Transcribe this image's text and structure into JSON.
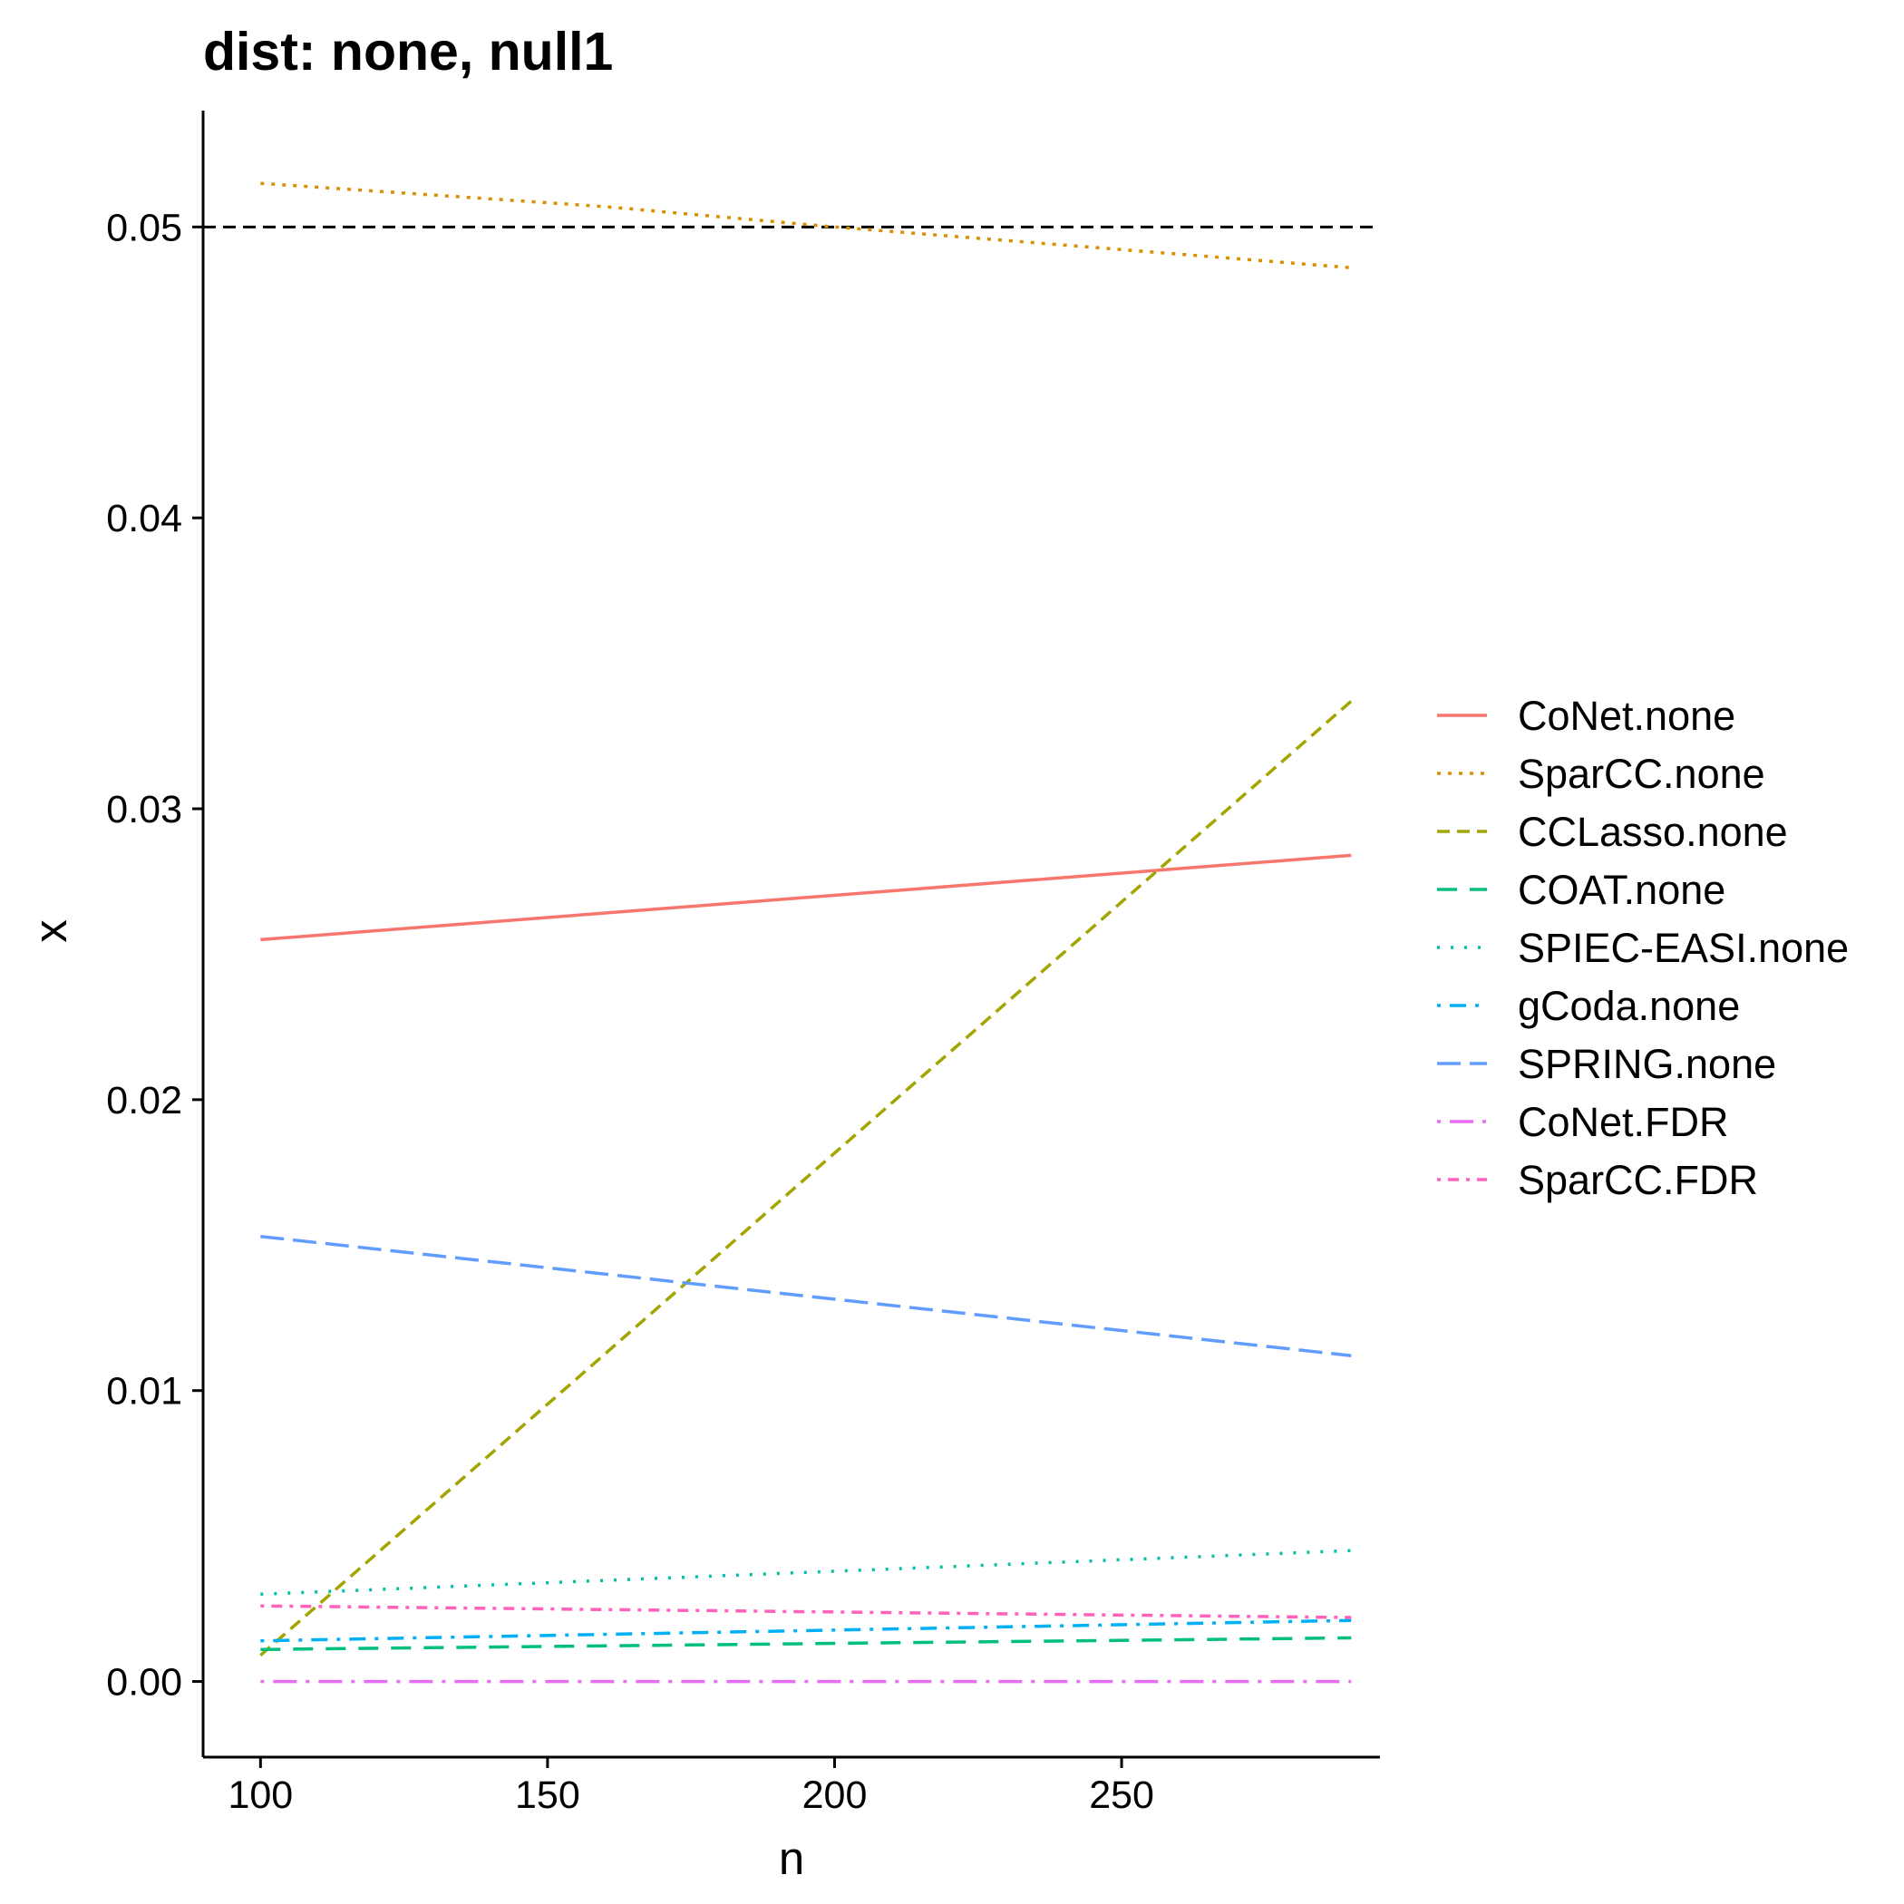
{
  "chart_data": {
    "type": "line",
    "title": "dist: none, null1",
    "xlabel": "n",
    "ylabel": "x",
    "xlim": [
      90,
      295
    ],
    "ylim": [
      -0.0026,
      0.054
    ],
    "x_ticks": [
      100,
      150,
      200,
      250
    ],
    "x_tick_labels": [
      "100",
      "150",
      "200",
      "250"
    ],
    "y_ticks": [
      0.0,
      0.01,
      0.02,
      0.03,
      0.04,
      0.05
    ],
    "y_tick_labels": [
      "0.00",
      "0.01",
      "0.02",
      "0.03",
      "0.04",
      "0.05"
    ],
    "grid": false,
    "legend_position": "right",
    "reference_line": {
      "y": 0.05,
      "color": "#000000",
      "dash": "dashed"
    },
    "series": [
      {
        "name": "CoNet.none",
        "color": "#F8766D",
        "dash": "solid",
        "x": [
          100,
          290
        ],
        "y": [
          0.0255,
          0.0284
        ]
      },
      {
        "name": "SparCC.none",
        "color": "#D89000",
        "dash": "dotted",
        "x": [
          100,
          160,
          200,
          290
        ],
        "y": [
          0.0515,
          0.0507,
          0.05,
          0.0486
        ]
      },
      {
        "name": "CCLasso.none",
        "color": "#A3A500",
        "dash": "dashed",
        "x": [
          100,
          290
        ],
        "y": [
          0.0009,
          0.0337
        ]
      },
      {
        "name": "COAT.none",
        "color": "#00BF7D",
        "dash": "longdash",
        "x": [
          100,
          290
        ],
        "y": [
          0.0011,
          0.0015
        ]
      },
      {
        "name": "SPIEC-EASI.none",
        "color": "#00C1A3",
        "dash": "sparse-dotted",
        "x": [
          100,
          290
        ],
        "y": [
          0.003,
          0.0045
        ]
      },
      {
        "name": "gCoda.none",
        "color": "#00B0F6",
        "dash": "dotdash",
        "x": [
          100,
          290
        ],
        "y": [
          0.0014,
          0.0021
        ]
      },
      {
        "name": "SPRING.none",
        "color": "#619CFF",
        "dash": "long-dashed",
        "x": [
          100,
          290
        ],
        "y": [
          0.0153,
          0.0112
        ]
      },
      {
        "name": "CoNet.FDR",
        "color": "#E76BF3",
        "dash": "long-dotdash",
        "x": [
          100,
          290
        ],
        "y": [
          0.0,
          0.0
        ]
      },
      {
        "name": "SparCC.FDR",
        "color": "#FF62BC",
        "dash": "short-dotdash",
        "x": [
          100,
          290
        ],
        "y": [
          0.0026,
          0.0022
        ]
      }
    ]
  }
}
